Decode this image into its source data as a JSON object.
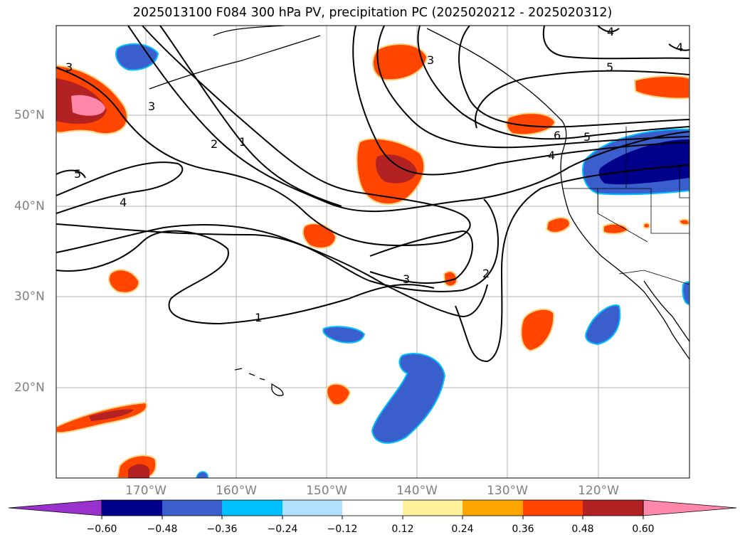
{
  "title": "2025013100 F084 300 hPa PV, precipitation PC (2025020212 - 2025020312)",
  "latitude_labels": [
    "50°N",
    "40°N",
    "30°N",
    "20°N"
  ],
  "longitude_labels": [
    "170°W",
    "160°W",
    "150°W",
    "140°W",
    "130°W",
    "120°W"
  ],
  "colorbar": {
    "colors": [
      "#9932cc",
      "#00008b",
      "#3a5fcd",
      "#00bfff",
      "#b0e2ff",
      "#ffffff",
      "#fff09a",
      "#ffa500",
      "#ff4500",
      "#b22222",
      "#ff88aa"
    ],
    "tick_labels": [
      "−0.60",
      "−0.48",
      "−0.36",
      "−0.24",
      "−0.12",
      "0.12",
      "0.24",
      "0.36",
      "0.48",
      "0.60"
    ]
  },
  "contour_labels": [
    "3",
    "3",
    "2",
    "1",
    "5",
    "4",
    "3",
    "6",
    "5",
    "4",
    "4",
    "4",
    "5",
    "3",
    "2",
    "1"
  ],
  "map_colors": {
    "coastline": "#000000",
    "grid": "#b0b0b0",
    "pv_contour": "#000000"
  }
}
